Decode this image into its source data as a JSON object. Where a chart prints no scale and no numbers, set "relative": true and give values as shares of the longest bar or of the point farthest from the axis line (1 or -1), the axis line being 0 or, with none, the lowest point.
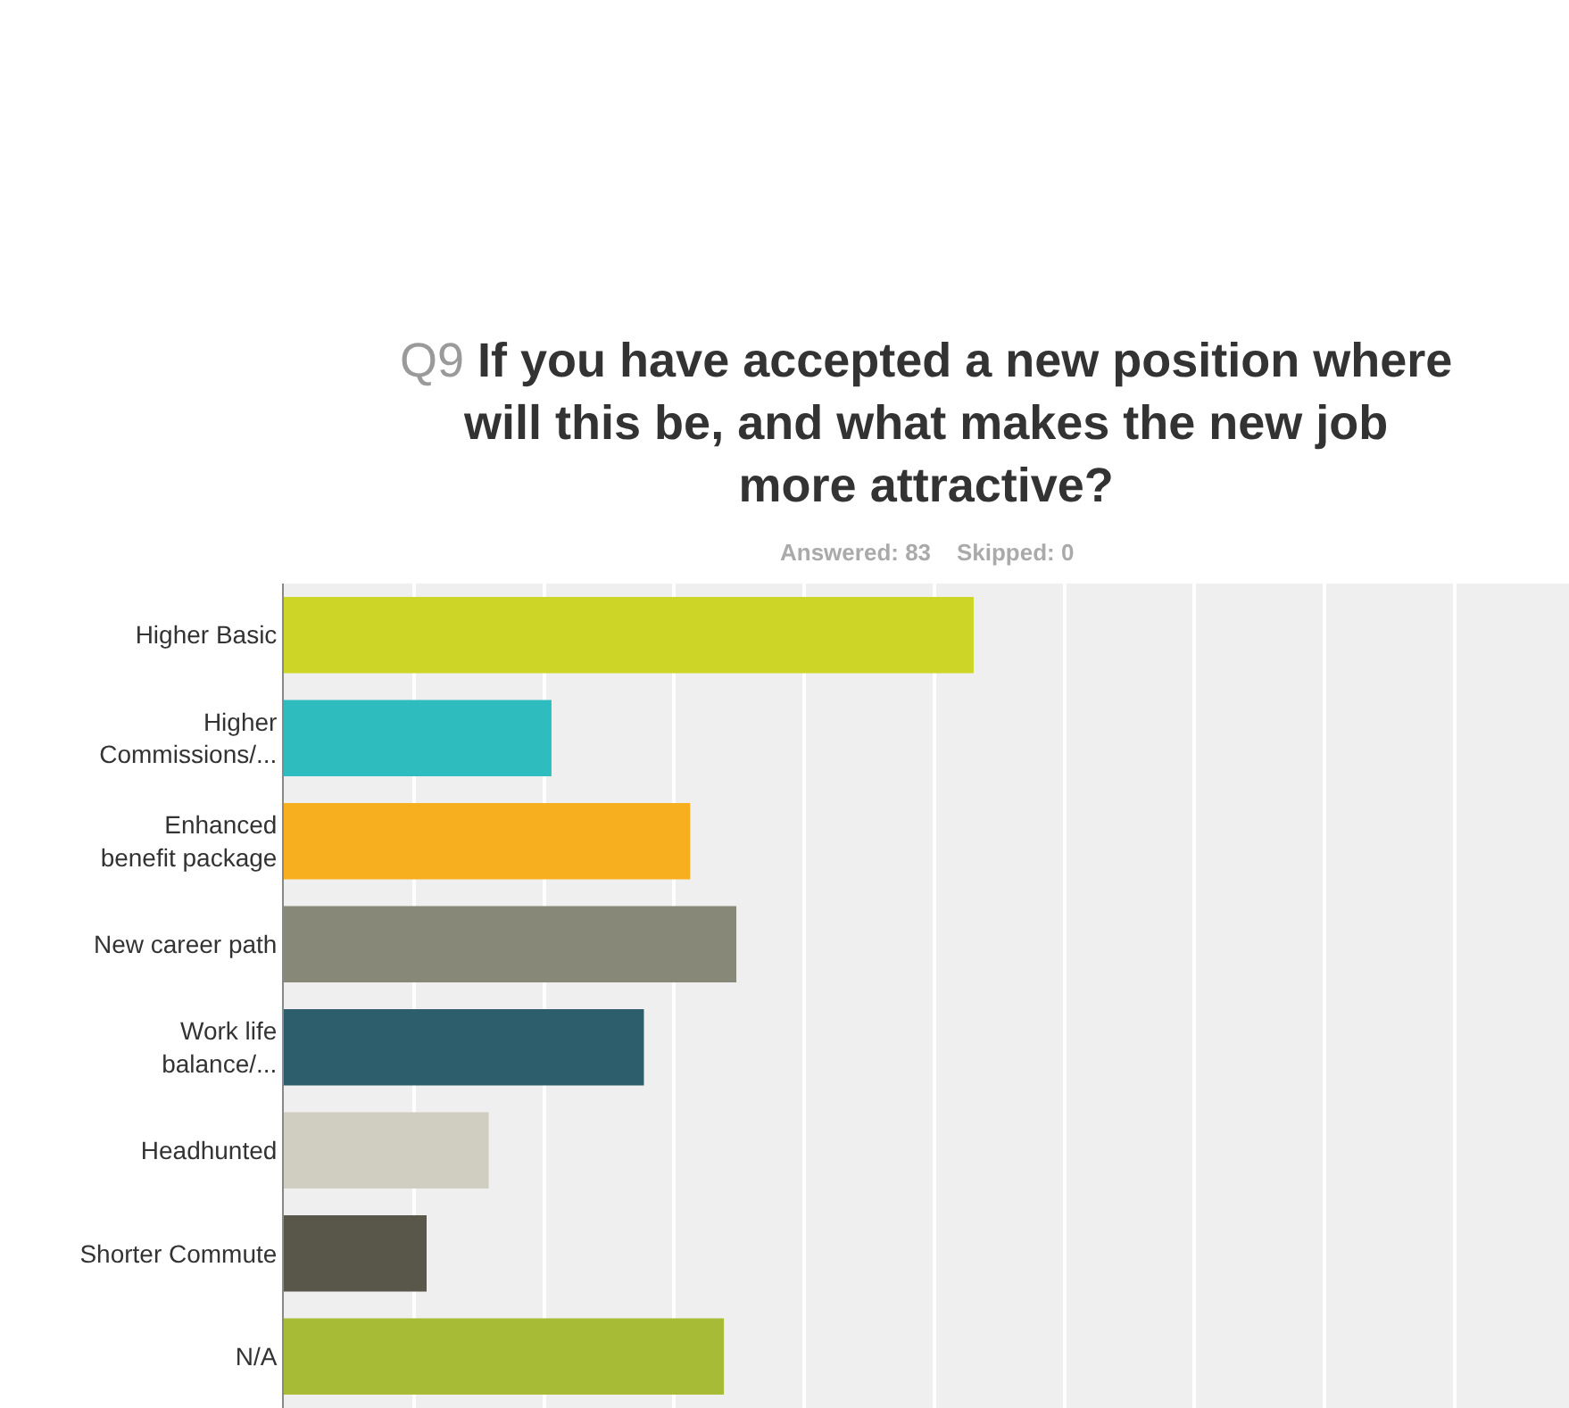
{
  "chart_data": {
    "type": "bar",
    "orientation": "horizontal",
    "relative": true,
    "title": "Q9 If you have accepted a new position where will this be, and what makes the new job more attractive?",
    "subtitle": "Answered: 83    Skipped: 0",
    "categories": [
      "Higher Basic",
      "Higher Commissions/...",
      "Enhanced benefit package",
      "New career path",
      "Work life balance/...",
      "Headhunted",
      "Shorter Commute",
      "N/A"
    ],
    "values": [
      1,
      0.388,
      0.589,
      0.656,
      0.522,
      0.297,
      0.207,
      0.638
    ],
    "colors": [
      "#cdd626",
      "#2fbcbf",
      "#f7ae1f",
      "#878878",
      "#2c5f6b",
      "#cfcec1",
      "#58574a",
      "#a8bb36"
    ],
    "grid": "x"
  }
}
